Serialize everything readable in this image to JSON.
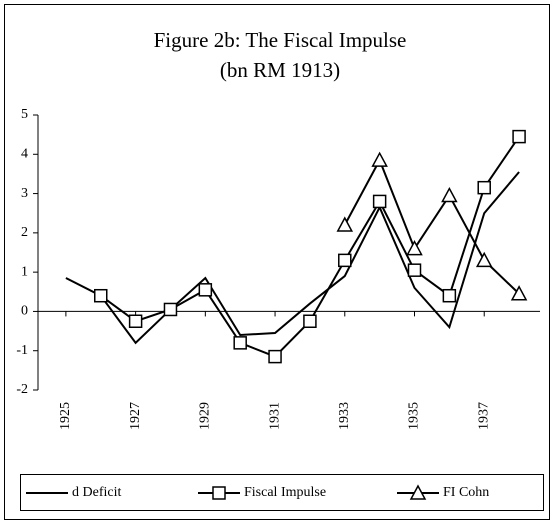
{
  "chart_data": {
    "type": "line",
    "title": "Figure 2b: The Fiscal Impulse",
    "subtitle": "(bn RM 1913)",
    "x": [
      1925,
      1926,
      1927,
      1928,
      1929,
      1930,
      1931,
      1932,
      1933,
      1934,
      1935,
      1936,
      1937,
      1938
    ],
    "xlim": [
      1924.2,
      1938.6
    ],
    "xticks": [
      1925,
      1927,
      1929,
      1931,
      1933,
      1935,
      1937
    ],
    "ylim": [
      -2,
      5
    ],
    "yticks": [
      -2,
      -1,
      0,
      1,
      2,
      3,
      4,
      5
    ],
    "legend": "bottom",
    "series": [
      {
        "name": "d Deficit",
        "color": "#000000",
        "marker": "none",
        "values": [
          0.85,
          0.4,
          -0.8,
          0.05,
          0.85,
          -0.6,
          -0.55,
          0.2,
          0.9,
          2.65,
          0.6,
          -0.4,
          2.5,
          3.55
        ]
      },
      {
        "name": "Fiscal Impulse",
        "color": "#000000",
        "marker": "square",
        "values": [
          null,
          0.4,
          -0.25,
          0.05,
          0.55,
          -0.8,
          -1.15,
          -0.25,
          1.3,
          2.8,
          1.05,
          0.4,
          3.15,
          4.45
        ]
      },
      {
        "name": "FI Cohn",
        "color": "#000000",
        "marker": "triangle",
        "values": [
          null,
          null,
          null,
          null,
          null,
          null,
          null,
          null,
          2.2,
          3.85,
          1.6,
          2.95,
          1.3,
          0.45
        ]
      }
    ]
  }
}
